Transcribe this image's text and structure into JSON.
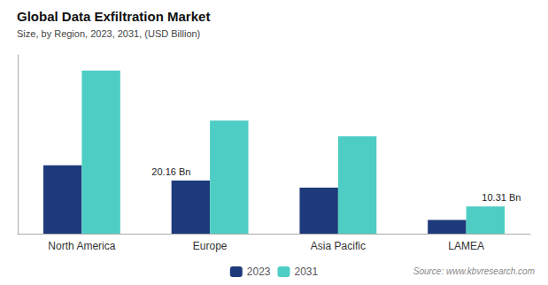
{
  "chart_data": {
    "type": "bar",
    "title": "Global Data Exfiltration Market",
    "subtitle": "Size, by Region, 2023, 2031, (USD Billion)",
    "source": "Source: www.kbvresearch.com",
    "categories": [
      "North America",
      "Europe",
      "Asia Pacific",
      "LAMEA"
    ],
    "series": [
      {
        "name": "2023",
        "color": "#1e3a7a",
        "values": [
          26.0,
          20.16,
          17.5,
          5.2
        ]
      },
      {
        "name": "2031",
        "color": "#4ecdc4",
        "values": [
          62.0,
          43.0,
          37.0,
          10.31
        ]
      }
    ],
    "annotations": [
      {
        "text": "20.16 Bn",
        "category": "Europe",
        "series": "2023"
      },
      {
        "text": "10.31 Bn",
        "category": "LAMEA",
        "series": "2031"
      }
    ],
    "ylim": [
      0,
      68
    ],
    "tick_labels": "x",
    "grid": false,
    "legend": "bottom"
  }
}
